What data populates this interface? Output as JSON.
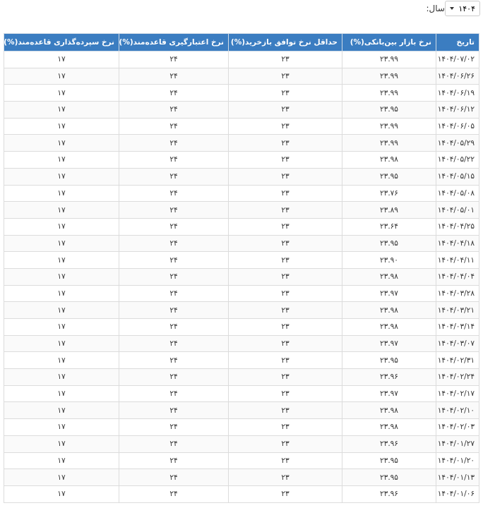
{
  "year_selector": {
    "label": "سال:",
    "selected": "۱۴۰۴"
  },
  "table": {
    "headers": [
      "تاریخ",
      "نرخ بازار بین‌بانکی(%)",
      "حداقل نرخ توافق بازخرید(%)",
      "نرخ اعتبارگیری قاعده‌مند(%)",
      "نرخ سپرده‌گذاری قاعده‌مند(%)"
    ],
    "rows": [
      [
        "۱۴۰۴/۰۷/۰۲",
        "۲۳.۹۹",
        "۲۳",
        "۲۴",
        "۱۷"
      ],
      [
        "۱۴۰۴/۰۶/۲۶",
        "۲۳.۹۹",
        "۲۳",
        "۲۴",
        "۱۷"
      ],
      [
        "۱۴۰۴/۰۶/۱۹",
        "۲۳.۹۹",
        "۲۳",
        "۲۴",
        "۱۷"
      ],
      [
        "۱۴۰۴/۰۶/۱۲",
        "۲۳.۹۵",
        "۲۳",
        "۲۴",
        "۱۷"
      ],
      [
        "۱۴۰۴/۰۶/۰۵",
        "۲۳.۹۹",
        "۲۳",
        "۲۴",
        "۱۷"
      ],
      [
        "۱۴۰۴/۰۵/۲۹",
        "۲۳.۹۹",
        "۲۳",
        "۲۴",
        "۱۷"
      ],
      [
        "۱۴۰۴/۰۵/۲۲",
        "۲۳.۹۸",
        "۲۳",
        "۲۴",
        "۱۷"
      ],
      [
        "۱۴۰۴/۰۵/۱۵",
        "۲۳.۹۵",
        "۲۳",
        "۲۴",
        "۱۷"
      ],
      [
        "۱۴۰۴/۰۵/۰۸",
        "۲۳.۷۶",
        "۲۳",
        "۲۴",
        "۱۷"
      ],
      [
        "۱۴۰۴/۰۵/۰۱",
        "۲۳.۸۹",
        "۲۳",
        "۲۴",
        "۱۷"
      ],
      [
        "۱۴۰۴/۰۴/۲۵",
        "۲۳.۶۴",
        "۲۳",
        "۲۴",
        "۱۷"
      ],
      [
        "۱۴۰۴/۰۴/۱۸",
        "۲۳.۹۵",
        "۲۳",
        "۲۴",
        "۱۷"
      ],
      [
        "۱۴۰۴/۰۴/۱۱",
        "۲۳.۹۰",
        "۲۳",
        "۲۴",
        "۱۷"
      ],
      [
        "۱۴۰۴/۰۴/۰۴",
        "۲۳.۹۸",
        "۲۳",
        "۲۴",
        "۱۷"
      ],
      [
        "۱۴۰۴/۰۳/۲۸",
        "۲۳.۹۷",
        "۲۳",
        "۲۴",
        "۱۷"
      ],
      [
        "۱۴۰۴/۰۳/۲۱",
        "۲۳.۹۸",
        "۲۳",
        "۲۴",
        "۱۷"
      ],
      [
        "۱۴۰۴/۰۳/۱۴",
        "۲۳.۹۸",
        "۲۳",
        "۲۴",
        "۱۷"
      ],
      [
        "۱۴۰۴/۰۳/۰۷",
        "۲۳.۹۷",
        "۲۳",
        "۲۴",
        "۱۷"
      ],
      [
        "۱۴۰۴/۰۲/۳۱",
        "۲۳.۹۵",
        "۲۳",
        "۲۴",
        "۱۷"
      ],
      [
        "۱۴۰۴/۰۲/۲۴",
        "۲۳.۹۶",
        "۲۳",
        "۲۴",
        "۱۷"
      ],
      [
        "۱۴۰۴/۰۲/۱۷",
        "۲۳.۹۷",
        "۲۳",
        "۲۴",
        "۱۷"
      ],
      [
        "۱۴۰۴/۰۲/۱۰",
        "۲۳.۹۸",
        "۲۳",
        "۲۴",
        "۱۷"
      ],
      [
        "۱۴۰۴/۰۲/۰۳",
        "۲۳.۹۸",
        "۲۳",
        "۲۴",
        "۱۷"
      ],
      [
        "۱۴۰۴/۰۱/۲۷",
        "۲۳.۹۶",
        "۲۳",
        "۲۴",
        "۱۷"
      ],
      [
        "۱۴۰۴/۰۱/۲۰",
        "۲۳.۹۵",
        "۲۳",
        "۲۴",
        "۱۷"
      ],
      [
        "۱۴۰۴/۰۱/۱۳",
        "۲۳.۹۵",
        "۲۳",
        "۲۴",
        "۱۷"
      ],
      [
        "۱۴۰۴/۰۱/۰۶",
        "۲۳.۹۶",
        "۲۳",
        "۲۴",
        "۱۷"
      ]
    ]
  }
}
